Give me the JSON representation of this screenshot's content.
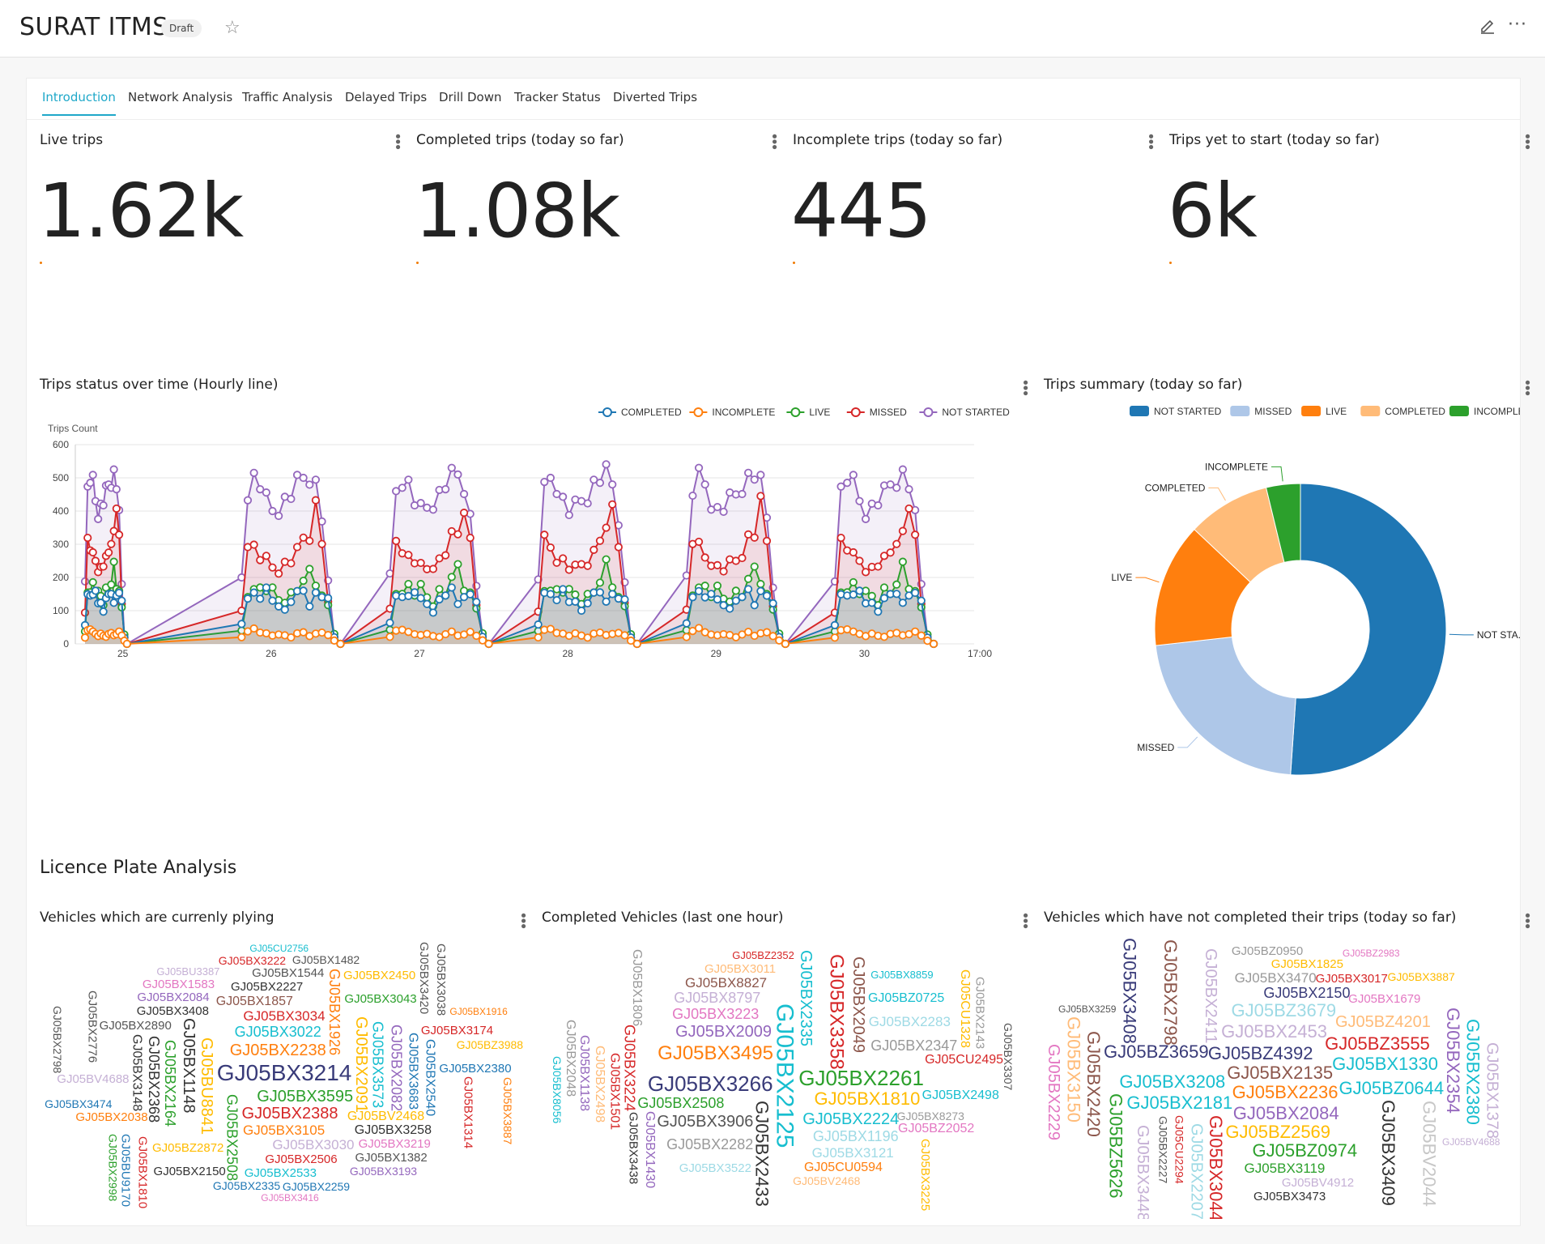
{
  "header": {
    "title": "SURAT ITMS",
    "badge": "Draft",
    "star_icon": "star-icon",
    "edit_icon": "pencil-icon",
    "more_icon": "more-horizontal-icon"
  },
  "tabs": [
    {
      "label": "Introduction",
      "active": true
    },
    {
      "label": "Network Analysis",
      "active": false
    },
    {
      "label": "Traffic Analysis",
      "active": false
    },
    {
      "label": "Delayed Trips",
      "active": false
    },
    {
      "label": "Drill Down",
      "active": false
    },
    {
      "label": "Tracker Status",
      "active": false
    },
    {
      "label": "Diverted Trips",
      "active": false
    }
  ],
  "kpis": [
    {
      "title": "Live trips",
      "value": "1.62k"
    },
    {
      "title": "Completed trips (today so far)",
      "value": "1.08k"
    },
    {
      "title": "Incomplete trips (today so far)",
      "value": "445"
    },
    {
      "title": "Trips yet to start (today so far)",
      "value": "6k"
    }
  ],
  "line_panel": {
    "title": "Trips status over time (Hourly line)"
  },
  "pie_panel": {
    "title": "Trips summary (today so far)"
  },
  "section": {
    "title": "Licence Plate Analysis"
  },
  "cloud_panels": [
    {
      "title": "Vehicles which are currenly plying"
    },
    {
      "title": "Completed Vehicles (last one hour)"
    },
    {
      "title": "Vehicles which have not completed their trips (today so far)"
    }
  ],
  "colors": {
    "accent": "#1fa8c9",
    "completed": "#1f77b4",
    "incomplete": "#ff7f0e",
    "live": "#2ca02c",
    "missed": "#d62728",
    "not_started": "#9467bd"
  },
  "chart_data": [
    {
      "type": "line",
      "ylabel": "Trips Count",
      "ylim": [
        0,
        600
      ],
      "yticks": [
        0,
        100,
        200,
        300,
        400,
        500,
        600
      ],
      "xticks": [
        "25",
        "26",
        "27",
        "28",
        "29",
        "30",
        "17:00"
      ],
      "legend_position": "top-right",
      "series": [
        {
          "name": "COMPLETED",
          "color": "#1f77b4",
          "day_profile": [
            60,
            145,
            150,
            140,
            160,
            130,
            120,
            100,
            130,
            150,
            160,
            120,
            150,
            145,
            130,
            20,
            0
          ]
        },
        {
          "name": "INCOMPLETE",
          "color": "#ff7f0e",
          "day_profile": [
            20,
            40,
            45,
            35,
            30,
            25,
            30,
            25,
            20,
            30,
            35,
            25,
            30,
            35,
            25,
            10,
            0
          ]
        },
        {
          "name": "LIVE",
          "color": "#2ca02c",
          "day_profile": [
            40,
            150,
            160,
            175,
            150,
            170,
            140,
            120,
            160,
            150,
            190,
            240,
            170,
            150,
            110,
            30,
            0
          ]
        },
        {
          "name": "MISSED",
          "color": "#d62728",
          "day_profile": [
            100,
            310,
            290,
            260,
            250,
            230,
            225,
            240,
            250,
            275,
            320,
            330,
            420,
            310,
            120,
            20,
            0
          ]
        },
        {
          "name": "NOT STARTED",
          "color": "#9467bd",
          "day_profile": [
            200,
            460,
            500,
            480,
            430,
            400,
            410,
            430,
            450,
            480,
            500,
            510,
            480,
            380,
            180,
            20,
            0
          ]
        }
      ]
    },
    {
      "type": "pie",
      "donut": true,
      "legend_position": "top",
      "series": [
        {
          "name": "NOT STARTED",
          "label": "NOT STA...",
          "value": 6000,
          "color": "#1f77b4"
        },
        {
          "name": "MISSED",
          "label": "MISSED",
          "value": 2600,
          "color": "#aec7e8"
        },
        {
          "name": "LIVE",
          "label": "LIVE",
          "value": 1620,
          "color": "#ff7f0e"
        },
        {
          "name": "COMPLETED",
          "label": "COMPLETED",
          "value": 1080,
          "color": "#ffbb78"
        },
        {
          "name": "INCOMPLETE",
          "label": "INCOMPLETE",
          "value": 445,
          "color": "#2ca02c"
        }
      ]
    }
  ],
  "word_clouds": [
    {
      "words": [
        {
          "t": "GJ05BX3193",
          "s": 14,
          "c": "#9467bd"
        },
        {
          "t": "GJ05BX2259",
          "s": 14,
          "c": "#1f77b4"
        },
        {
          "t": "GJ05BX2335",
          "s": 14,
          "c": "#1f77b4"
        },
        {
          "t": "GJ05BX3222",
          "s": 14,
          "c": "#d62728"
        },
        {
          "t": "GJ05BX1482",
          "s": 14,
          "c": "#555555"
        },
        {
          "t": "GJ05BX2506",
          "s": 15,
          "c": "#d62728"
        },
        {
          "t": "GJ05BX2227",
          "s": 15,
          "c": "#333333"
        },
        {
          "t": "GJ05BX3416",
          "s": 12,
          "c": "#e377c2"
        },
        {
          "t": "GJ05BX3408",
          "s": 15,
          "c": "#333333"
        },
        {
          "t": "GJ05BZ2872",
          "s": 15,
          "c": "#ffbb00"
        },
        {
          "t": "GJ05BX3043",
          "s": 15,
          "c": "#2ca02c"
        },
        {
          "t": "GJ05BX3105",
          "s": 17,
          "c": "#ff7f0e"
        },
        {
          "t": "GJ05BX3219",
          "s": 15,
          "c": "#e377c2"
        },
        {
          "t": "GJ05BX3474",
          "s": 14,
          "c": "#1f77b4"
        },
        {
          "t": "GJ05BX3034",
          "s": 17,
          "c": "#d62728"
        },
        {
          "t": "GJ05BX2890",
          "s": 15,
          "c": "#555555"
        },
        {
          "t": "GJ05BX3030",
          "s": 17,
          "c": "#c5b0d5"
        },
        {
          "t": "GJ05BV2468",
          "s": 16,
          "c": "#ffbb00"
        },
        {
          "t": "GJ05BX3022",
          "s": 18,
          "c": "#17becf"
        },
        {
          "t": "GJ05BX1857",
          "s": 16,
          "c": "#8c564b"
        },
        {
          "t": "GJ05BX3258",
          "s": 16,
          "c": "#333333"
        },
        {
          "t": "GJ05BX2238",
          "s": 20,
          "c": "#ff7f0e"
        },
        {
          "t": "GJ05BX3595",
          "s": 20,
          "c": "#2ca02c"
        },
        {
          "t": "GJ05BX2084",
          "s": 15,
          "c": "#9467bd"
        },
        {
          "t": "GJ05BX3214",
          "s": 28,
          "c": "#393b79"
        },
        {
          "t": "GJ05BX2388",
          "s": 20,
          "c": "#d62728"
        },
        {
          "t": "GJ05BX2533",
          "s": 15,
          "c": "#17becf"
        },
        {
          "t": "GJ05BX1544",
          "s": 15,
          "c": "#555555"
        },
        {
          "t": "GJ05BX1382",
          "s": 15,
          "c": "#555555"
        },
        {
          "t": "GJ05BX2038",
          "s": 15,
          "c": "#ff7f0e"
        },
        {
          "t": "GJ05BX1583",
          "s": 15,
          "c": "#e377c2"
        },
        {
          "t": "GJ05BX3174",
          "s": 15,
          "c": "#d62728"
        },
        {
          "t": "GJ05BZ3988",
          "s": 14,
          "c": "#ffbb00"
        },
        {
          "t": "GJ05BV4688",
          "s": 15,
          "c": "#c5b0d5"
        },
        {
          "t": "GJ05BX2380",
          "s": 15,
          "c": "#1f77b4"
        },
        {
          "t": "GJ05BX2150",
          "s": 15,
          "c": "#333333"
        },
        {
          "t": "GJ05BX2450",
          "s": 15,
          "c": "#ffbb00"
        },
        {
          "t": "GJ05BU3387",
          "s": 13,
          "c": "#c5b0d5"
        },
        {
          "t": "GJ05CU2756",
          "s": 12,
          "c": "#17becf"
        },
        {
          "t": "GJ05BX1916",
          "s": 12,
          "c": "#ff7f0e"
        }
      ],
      "vwords": [
        {
          "t": "GJ05BU8841",
          "s": 20,
          "c": "#ffbb00"
        },
        {
          "t": "GJ05BX3573",
          "s": 18,
          "c": "#17becf"
        },
        {
          "t": "GJ05BX2091",
          "s": 20,
          "c": "#ffbb00"
        },
        {
          "t": "GJ05BX2164",
          "s": 18,
          "c": "#2ca02c"
        },
        {
          "t": "GJ05BX2082",
          "s": 18,
          "c": "#9467bd"
        },
        {
          "t": "GJ05BX2508",
          "s": 18,
          "c": "#2ca02c"
        },
        {
          "t": "GJ05BX1926",
          "s": 18,
          "c": "#ff7f0e"
        },
        {
          "t": "GJ05BX2368",
          "s": 18,
          "c": "#333333"
        },
        {
          "t": "GJ05BX1148",
          "s": 20,
          "c": "#333333"
        },
        {
          "t": "GJ05BX3683",
          "s": 16,
          "c": "#1f77b4"
        },
        {
          "t": "GJ05BX3148",
          "s": 16,
          "c": "#333333"
        },
        {
          "t": "GJ05BX2540",
          "s": 16,
          "c": "#1f77b4"
        },
        {
          "t": "GJ05BX1314",
          "s": 15,
          "c": "#d62728"
        },
        {
          "t": "GJ05BX2776",
          "s": 15,
          "c": "#555555"
        },
        {
          "t": "GJ05BX2798",
          "s": 14,
          "c": "#555555"
        },
        {
          "t": "GJ05BX1810",
          "s": 15,
          "c": "#d62728"
        },
        {
          "t": "GJ05BX3887",
          "s": 14,
          "c": "#ff7f0e"
        },
        {
          "t": "GJ05BX3420",
          "s": 15,
          "c": "#555555"
        },
        {
          "t": "GJ05BU9170",
          "s": 15,
          "c": "#1f77b4"
        },
        {
          "t": "GJ05BX2998",
          "s": 14,
          "c": "#2ca02c"
        },
        {
          "t": "GJ05BX3038",
          "s": 15,
          "c": "#555555"
        }
      ]
    },
    {
      "words": [
        {
          "t": "GJ05CU0594",
          "s": 16,
          "c": "#ff7f0e"
        },
        {
          "t": "GJ05BZ0725",
          "s": 16,
          "c": "#17becf"
        },
        {
          "t": "GJ05CU2495",
          "s": 16,
          "c": "#d62728"
        },
        {
          "t": "GJ05BX8273",
          "s": 14,
          "c": "#999999"
        },
        {
          "t": "GJ05BX2498",
          "s": 16,
          "c": "#17becf"
        },
        {
          "t": "GJ05BX2508",
          "s": 18,
          "c": "#2ca02c"
        },
        {
          "t": "GJ05BX3522",
          "s": 15,
          "c": "#9edae5"
        },
        {
          "t": "GJ05BX3011",
          "s": 15,
          "c": "#ffbb78"
        },
        {
          "t": "GJ05BX3223",
          "s": 18,
          "c": "#e377c2"
        },
        {
          "t": "GJ05BV2468",
          "s": 14,
          "c": "#ffbb78"
        },
        {
          "t": "GJ05BZ2052",
          "s": 16,
          "c": "#e377c2"
        },
        {
          "t": "GJ05BX2283",
          "s": 17,
          "c": "#9edae5"
        },
        {
          "t": "GJ05BX2261",
          "s": 26,
          "c": "#2ca02c"
        },
        {
          "t": "GJ05BX3121",
          "s": 17,
          "c": "#9edae5"
        },
        {
          "t": "GJ05BX3266",
          "s": 26,
          "c": "#393b79"
        },
        {
          "t": "GJ05BX2009",
          "s": 20,
          "c": "#9467bd"
        },
        {
          "t": "GJ05BX1196",
          "s": 18,
          "c": "#9edae5"
        },
        {
          "t": "GJ05BX2224",
          "s": 20,
          "c": "#17becf"
        },
        {
          "t": "GJ05BX2347",
          "s": 18,
          "c": "#999999"
        },
        {
          "t": "GJ05BX3495",
          "s": 24,
          "c": "#ff7f0e"
        },
        {
          "t": "GJ05BX1810",
          "s": 22,
          "c": "#ffbb00"
        },
        {
          "t": "GJ05BX2282",
          "s": 18,
          "c": "#999999"
        },
        {
          "t": "GJ05BX8797",
          "s": 18,
          "c": "#c5b0d5"
        },
        {
          "t": "GJ05BX3906",
          "s": 20,
          "c": "#555555"
        },
        {
          "t": "GJ05BX8827",
          "s": 17,
          "c": "#8c564b"
        },
        {
          "t": "GJ05BZ2352",
          "s": 13,
          "c": "#d62728"
        },
        {
          "t": "GJ05BX8859",
          "s": 13,
          "c": "#17becf"
        }
      ],
      "vwords": [
        {
          "t": "GJ05BX2433",
          "s": 22,
          "c": "#333333"
        },
        {
          "t": "GJ05BX2335",
          "s": 20,
          "c": "#17becf"
        },
        {
          "t": "GJ05BX3358",
          "s": 24,
          "c": "#d62728"
        },
        {
          "t": "GJ05BX2125",
          "s": 30,
          "c": "#17becf"
        },
        {
          "t": "GJ05BX2049",
          "s": 20,
          "c": "#8c564b"
        },
        {
          "t": "GJ05BX3224",
          "s": 18,
          "c": "#d62728"
        },
        {
          "t": "GJ05BX1501",
          "s": 16,
          "c": "#d62728"
        },
        {
          "t": "GJ05BX3438",
          "s": 15,
          "c": "#333333"
        },
        {
          "t": "GJ05BX2498",
          "s": 16,
          "c": "#ffbb78"
        },
        {
          "t": "GJ05BX1430",
          "s": 16,
          "c": "#9467bd"
        },
        {
          "t": "GJ05BX1138",
          "s": 16,
          "c": "#9467bd"
        },
        {
          "t": "GJ05BX1806",
          "s": 16,
          "c": "#999999"
        },
        {
          "t": "GJ05CU1328",
          "s": 16,
          "c": "#ffbb00"
        },
        {
          "t": "GJ05BX2143",
          "s": 15,
          "c": "#999999"
        },
        {
          "t": "GJ05BX3225",
          "s": 15,
          "c": "#ffbb00"
        },
        {
          "t": "GJ05BX2048",
          "s": 16,
          "c": "#999999"
        },
        {
          "t": "GJ05BX3307",
          "s": 14,
          "c": "#555555"
        },
        {
          "t": "GJ05BX8056",
          "s": 14,
          "c": "#17becf"
        }
      ]
    },
    {
      "words": [
        {
          "t": "GJ05BX3887",
          "s": 14,
          "c": "#ffbb00"
        },
        {
          "t": "GJ05BX2135",
          "s": 22,
          "c": "#8c564b"
        },
        {
          "t": "GJ05BX2150",
          "s": 18,
          "c": "#393b79"
        },
        {
          "t": "GJ05BX2236",
          "s": 22,
          "c": "#ff7f0e"
        },
        {
          "t": "GJ05BZ4392",
          "s": 22,
          "c": "#393b79"
        },
        {
          "t": "GJ05BX1679",
          "s": 15,
          "c": "#e377c2"
        },
        {
          "t": "GJ05BX2084",
          "s": 22,
          "c": "#9467bd"
        },
        {
          "t": "GJ05BX3119",
          "s": 17,
          "c": "#2ca02c"
        },
        {
          "t": "GJ05BZ4201",
          "s": 20,
          "c": "#ffbb78"
        },
        {
          "t": "GJ05BX2453",
          "s": 22,
          "c": "#c5b0d5"
        },
        {
          "t": "GJ05BX3259",
          "s": 12,
          "c": "#555555"
        },
        {
          "t": "GJ05BX3470",
          "s": 17,
          "c": "#999999"
        },
        {
          "t": "GJ05BZ2569",
          "s": 22,
          "c": "#ffbb00"
        },
        {
          "t": "GJ05BX1330",
          "s": 22,
          "c": "#17becf"
        },
        {
          "t": "GJ05BV4688",
          "s": 12,
          "c": "#c5b0d5"
        },
        {
          "t": "GJ05BX3017",
          "s": 15,
          "c": "#d62728"
        },
        {
          "t": "GJ05BX3208",
          "s": 22,
          "c": "#17becf"
        },
        {
          "t": "GJ05BZ3679",
          "s": 22,
          "c": "#9edae5"
        },
        {
          "t": "GJ05BZ3555",
          "s": 22,
          "c": "#d62728"
        },
        {
          "t": "GJ05BX2181",
          "s": 22,
          "c": "#17becf"
        },
        {
          "t": "GJ05BZ0644",
          "s": 22,
          "c": "#17becf"
        },
        {
          "t": "GJ05BZ3659",
          "s": 22,
          "c": "#393b79"
        },
        {
          "t": "GJ05BZ0974",
          "s": 22,
          "c": "#2ca02c"
        },
        {
          "t": "GJ05BX1825",
          "s": 15,
          "c": "#ffbb00"
        },
        {
          "t": "GJ05BV4912",
          "s": 15,
          "c": "#c5b0d5"
        },
        {
          "t": "GJ05BZ0950",
          "s": 15,
          "c": "#999999"
        },
        {
          "t": "GJ05BX3473",
          "s": 15,
          "c": "#333333"
        },
        {
          "t": "GJ05BZ2983",
          "s": 12,
          "c": "#e377c2"
        }
      ],
      "vwords": [
        {
          "t": "GJ05BX3409",
          "s": 22,
          "c": "#333333"
        },
        {
          "t": "GJ05BX3044",
          "s": 22,
          "c": "#d62728"
        },
        {
          "t": "GJ05BX2411",
          "s": 20,
          "c": "#c5b0d5"
        },
        {
          "t": "GJ05BX2207",
          "s": 20,
          "c": "#9edae5"
        },
        {
          "t": "GJ05BX1378",
          "s": 20,
          "c": "#c5b0d5"
        },
        {
          "t": "GJ05BX3448",
          "s": 20,
          "c": "#c5b0d5"
        },
        {
          "t": "GJ05BX2354",
          "s": 22,
          "c": "#9467bd"
        },
        {
          "t": "GJ05BX2798",
          "s": 22,
          "c": "#8c564b"
        },
        {
          "t": "GJ05BX2420",
          "s": 22,
          "c": "#8c564b"
        },
        {
          "t": "GJ05BX2380",
          "s": 22,
          "c": "#17becf"
        },
        {
          "t": "GJ05BV2044",
          "s": 22,
          "c": "#c7c7c7"
        },
        {
          "t": "GJ05BX2229",
          "s": 20,
          "c": "#e377c2"
        },
        {
          "t": "GJ05BZ5626",
          "s": 22,
          "c": "#2ca02c"
        },
        {
          "t": "GJ05BX3150",
          "s": 22,
          "c": "#ffbb78"
        },
        {
          "t": "GJ05BX3408",
          "s": 22,
          "c": "#393b79"
        },
        {
          "t": "GJ05CU2294",
          "s": 14,
          "c": "#d62728"
        },
        {
          "t": "GJ05BX2227",
          "s": 14,
          "c": "#555555"
        }
      ]
    }
  ]
}
